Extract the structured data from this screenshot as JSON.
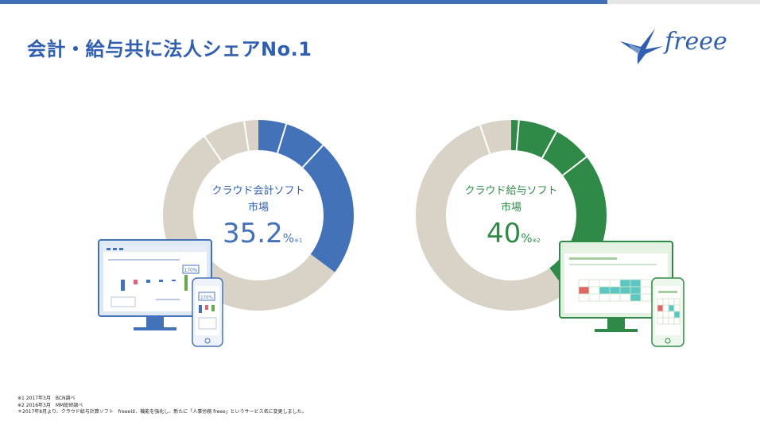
{
  "title": "会計・給与共に法人シェアNo.1",
  "logo": {
    "text": "freee"
  },
  "colors": {
    "accounting": "#4472b8",
    "payroll": "#2f8a47",
    "rest": "#d9d3c7",
    "title": "#2f5fae"
  },
  "chart_data": [
    {
      "type": "pie",
      "title": "クラウド会計ソフト市場",
      "label_lines": [
        "クラウド会計ソフト",
        "市場"
      ],
      "value": 35.2,
      "value_text": "35.2",
      "unit": "%",
      "note": "※1",
      "slices": [
        {
          "label": "freee",
          "value": 35.2,
          "color": "#4472b8"
        },
        {
          "label": "",
          "value": 64.8,
          "color": "#d9d3c7"
        }
      ]
    },
    {
      "type": "pie",
      "title": "クラウド給与ソフト市場",
      "label_lines": [
        "クラウド給与ソフト",
        "市場"
      ],
      "value": 40,
      "value_text": "40",
      "unit": "%",
      "note": "※2",
      "slices": [
        {
          "label": "freee",
          "value": 40,
          "color": "#2f8a47"
        },
        {
          "label": "",
          "value": 60,
          "color": "#d9d3c7"
        }
      ]
    }
  ],
  "device_left": {
    "badge_monitor": "170%",
    "badge_phone": "170%"
  },
  "footnotes": [
    "※1 2017年3月　BCN調べ",
    "※2 2016年3月　MM総研調べ",
    "＊2017年8月より、クラウド給与計算ソフト　freeeは、機能を強化し、新たに「人事労務 freee」というサービス名に変更しました。"
  ]
}
